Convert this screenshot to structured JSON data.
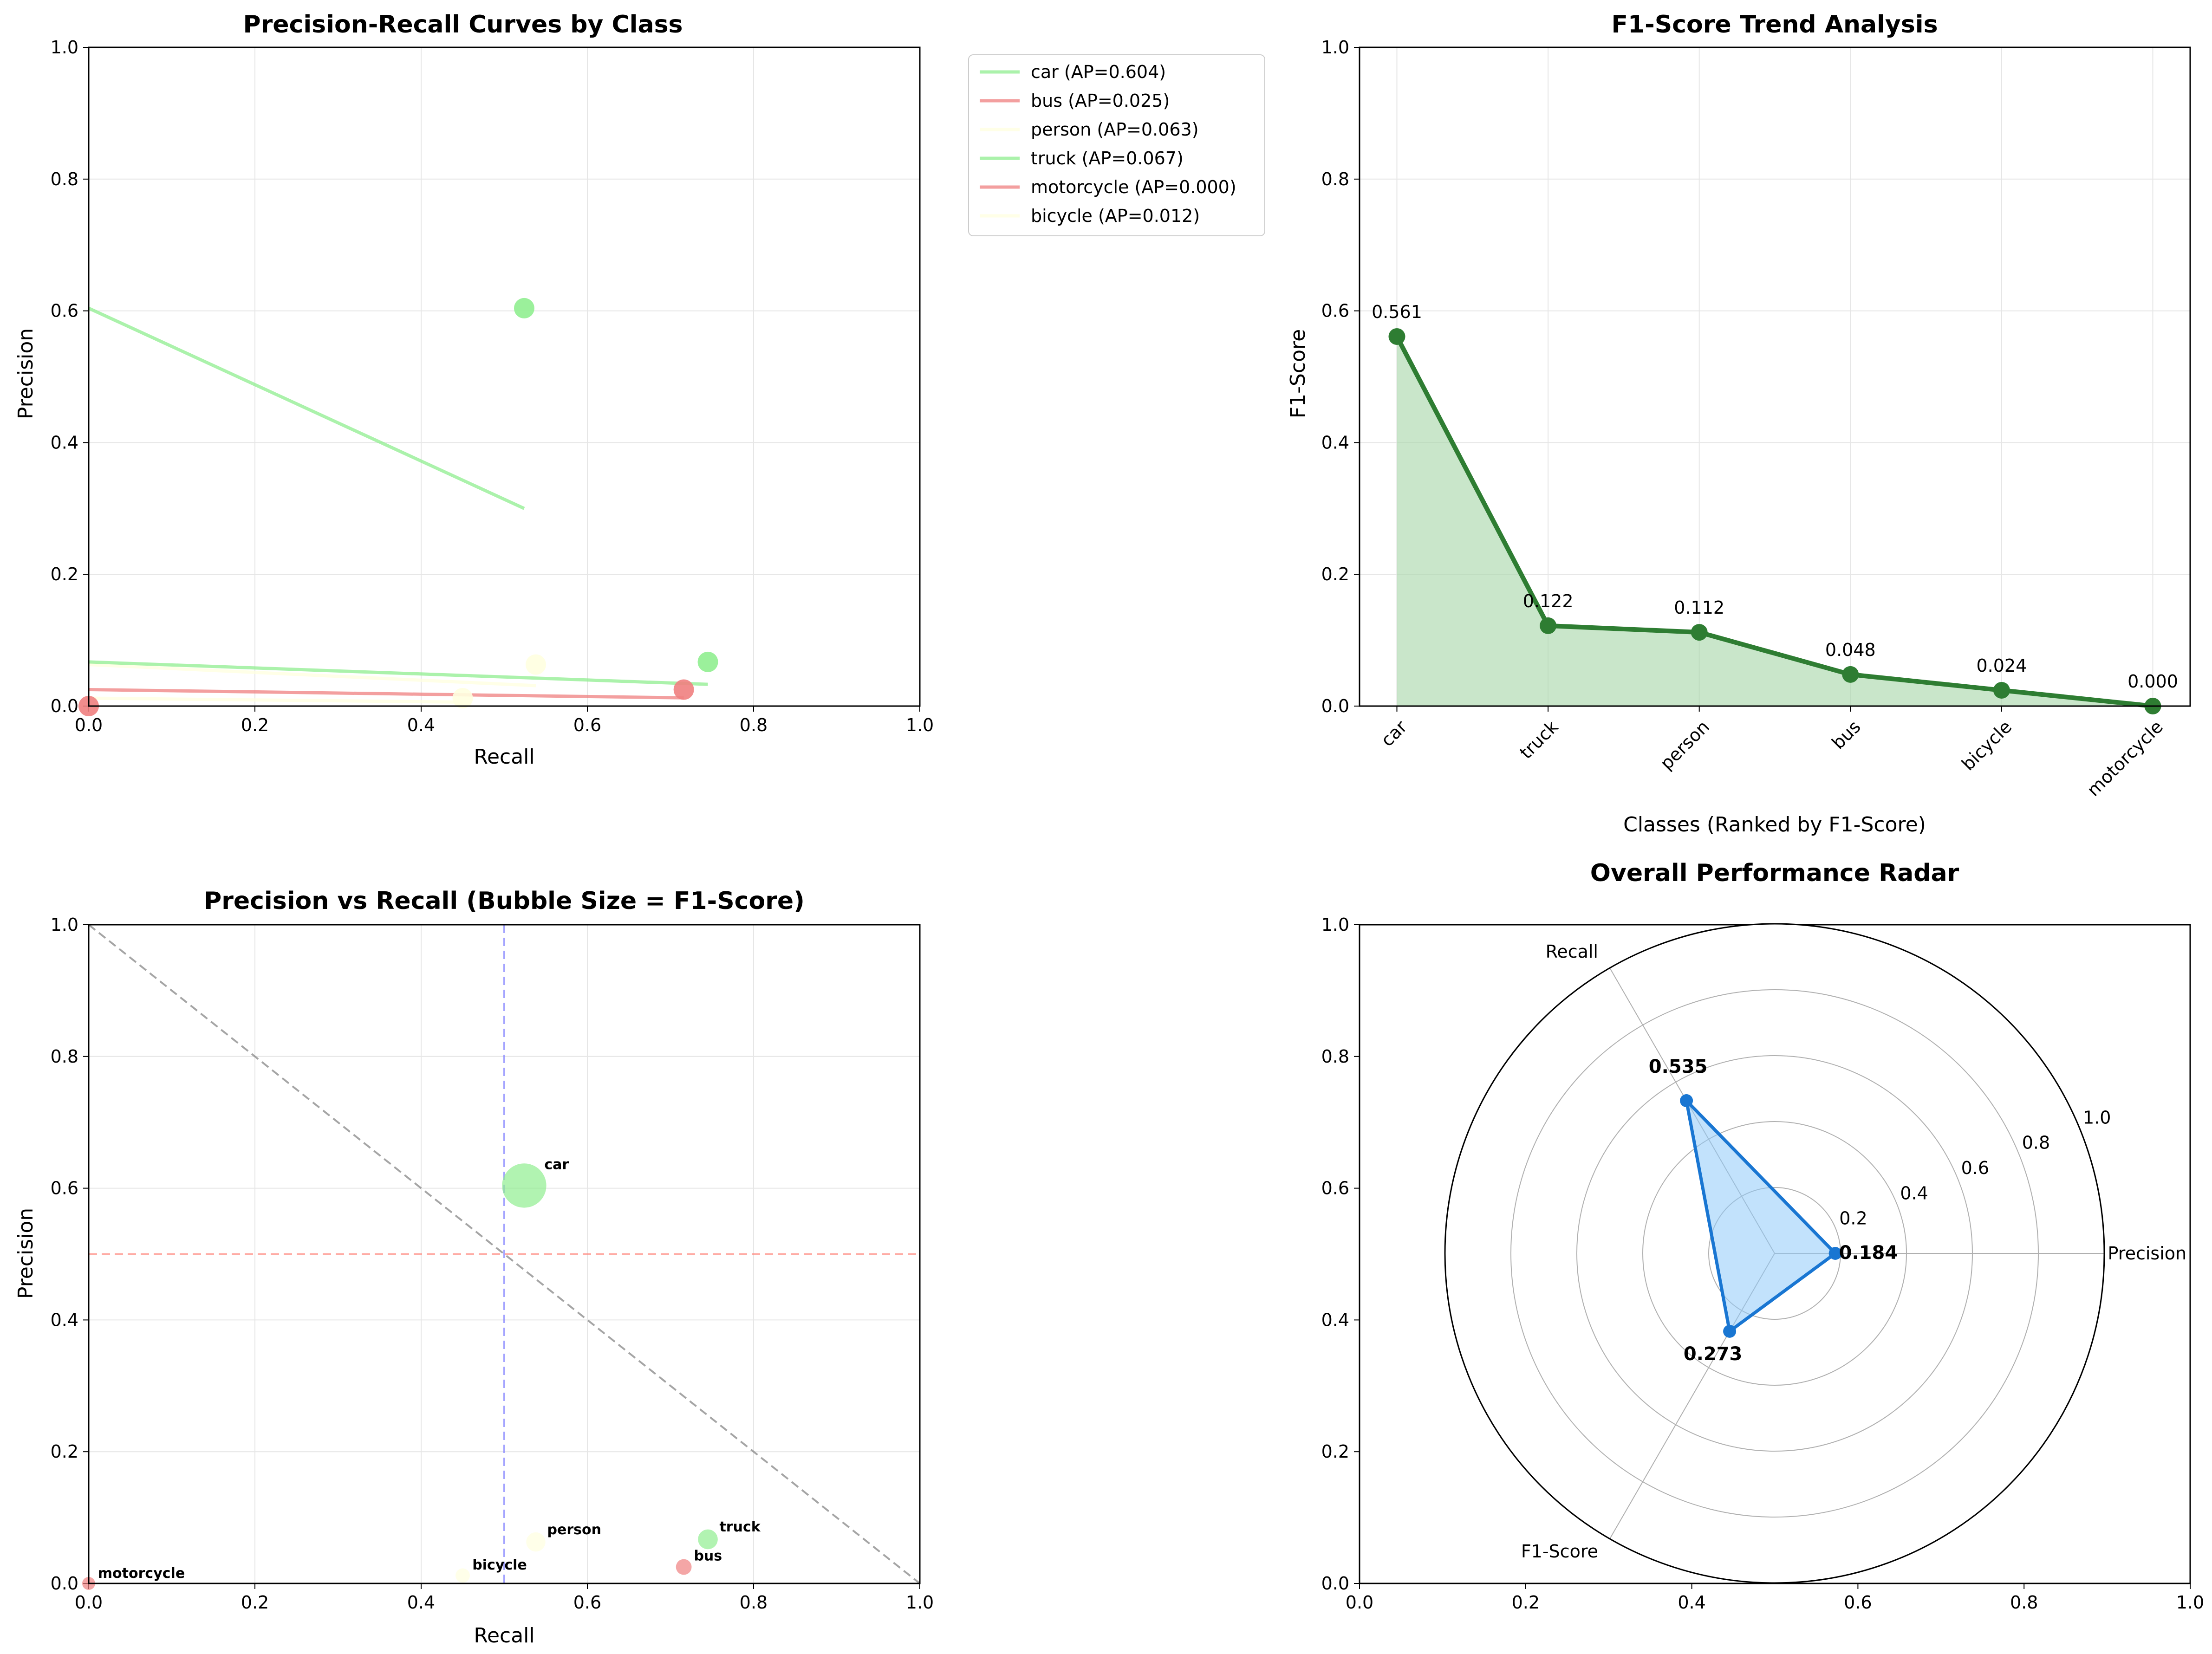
{
  "chart_data": [
    {
      "type": "line",
      "title": "Precision-Recall Curves by Class",
      "xlabel": "Recall",
      "ylabel": "Precision",
      "xlim": [
        0,
        1
      ],
      "ylim": [
        0,
        1
      ],
      "x_ticks": [
        "0.0",
        "0.2",
        "0.4",
        "0.6",
        "0.8",
        "1.0"
      ],
      "y_ticks": [
        "0.0",
        "0.2",
        "0.4",
        "0.6",
        "0.8",
        "1.0"
      ],
      "grid": true,
      "legend_position": "outside top-right",
      "series": [
        {
          "name": "car (AP=0.604)",
          "color": "#90ee90",
          "curve": [
            [
              0,
              0.604
            ],
            [
              0.524,
              0.3
            ]
          ],
          "point": [
            0.524,
            0.604
          ]
        },
        {
          "name": "bus (AP=0.025)",
          "color": "#f08080",
          "curve": [
            [
              0,
              0.025
            ],
            [
              0.716,
              0.0125
            ]
          ],
          "point": [
            0.716,
            0.025
          ]
        },
        {
          "name": "person (AP=0.063)",
          "color": "#ffffe0",
          "curve": [
            [
              0,
              0.063
            ],
            [
              0.538,
              0.031
            ]
          ],
          "point": [
            0.538,
            0.063
          ]
        },
        {
          "name": "truck (AP=0.067)",
          "color": "#90ee90",
          "curve": [
            [
              0,
              0.067
            ],
            [
              0.745,
              0.033
            ]
          ],
          "point": [
            0.745,
            0.067
          ]
        },
        {
          "name": "motorcycle (AP=0.000)",
          "color": "#f08080",
          "curve": [
            [
              0,
              0
            ],
            [
              0,
              0
            ]
          ],
          "point": [
            0,
            0
          ]
        },
        {
          "name": "bicycle (AP=0.012)",
          "color": "#ffffe0",
          "curve": [
            [
              0,
              0.012
            ],
            [
              0.45,
              0.006
            ]
          ],
          "point": [
            0.45,
            0.012
          ]
        }
      ]
    },
    {
      "type": "area",
      "title": "F1-Score Trend Analysis",
      "xlabel": "Classes (Ranked by F1-Score)",
      "ylabel": "F1-Score",
      "ylim": [
        0,
        1
      ],
      "y_ticks": [
        "0.0",
        "0.2",
        "0.4",
        "0.6",
        "0.8",
        "1.0"
      ],
      "grid": true,
      "color": "#2e7d32",
      "fill_color": "#a5d6a7",
      "categories": [
        "car",
        "truck",
        "person",
        "bus",
        "bicycle",
        "motorcycle"
      ],
      "values": [
        0.561,
        0.122,
        0.112,
        0.048,
        0.024,
        0.0
      ],
      "value_labels": [
        "0.561",
        "0.122",
        "0.112",
        "0.048",
        "0.024",
        "0.000"
      ]
    },
    {
      "type": "scatter",
      "title": "Precision vs Recall (Bubble Size = F1-Score)",
      "xlabel": "Recall",
      "ylabel": "Precision",
      "xlim": [
        0,
        1
      ],
      "ylim": [
        0,
        1
      ],
      "x_ticks": [
        "0.0",
        "0.2",
        "0.4",
        "0.6",
        "0.8",
        "1.0"
      ],
      "y_ticks": [
        "0.0",
        "0.2",
        "0.4",
        "0.6",
        "0.8",
        "1.0"
      ],
      "grid": true,
      "reference_lines": [
        {
          "kind": "vertical",
          "value": 0.5,
          "color": "#8080ff"
        },
        {
          "kind": "horizontal",
          "value": 0.5,
          "color": "#ff8a80"
        },
        {
          "kind": "diagonal",
          "from": [
            0,
            1
          ],
          "to": [
            1,
            0
          ],
          "color": "#808080"
        }
      ],
      "points": [
        {
          "label": "car",
          "x": 0.524,
          "y": 0.604,
          "f1": 0.561,
          "color": "#90ee90"
        },
        {
          "label": "truck",
          "x": 0.745,
          "y": 0.067,
          "f1": 0.122,
          "color": "#90ee90"
        },
        {
          "label": "person",
          "x": 0.538,
          "y": 0.063,
          "f1": 0.112,
          "color": "#ffffe0"
        },
        {
          "label": "bus",
          "x": 0.716,
          "y": 0.025,
          "f1": 0.048,
          "color": "#f08080"
        },
        {
          "label": "bicycle",
          "x": 0.45,
          "y": 0.012,
          "f1": 0.024,
          "color": "#ffffe0"
        },
        {
          "label": "motorcycle",
          "x": 0.0,
          "y": 0.0,
          "f1": 0.0,
          "color": "#f08080"
        }
      ]
    },
    {
      "type": "radar",
      "title": "Overall Performance Radar",
      "axes": [
        "Precision",
        "Recall",
        "F1-Score"
      ],
      "values": [
        0.184,
        0.535,
        0.273
      ],
      "value_labels": [
        "0.184",
        "0.535",
        "0.273"
      ],
      "r_ticks": [
        "0.2",
        "0.4",
        "0.6",
        "0.8",
        "1.0"
      ],
      "rlim": [
        0,
        1
      ],
      "color": "#1976d2",
      "fill_color": "#90caf9",
      "background_axes": {
        "x_ticks": [
          "0.0",
          "0.2",
          "0.4",
          "0.6",
          "0.8",
          "1.0"
        ],
        "y_ticks": [
          "0.0",
          "0.2",
          "0.4",
          "0.6",
          "0.8",
          "1.0"
        ]
      }
    }
  ]
}
